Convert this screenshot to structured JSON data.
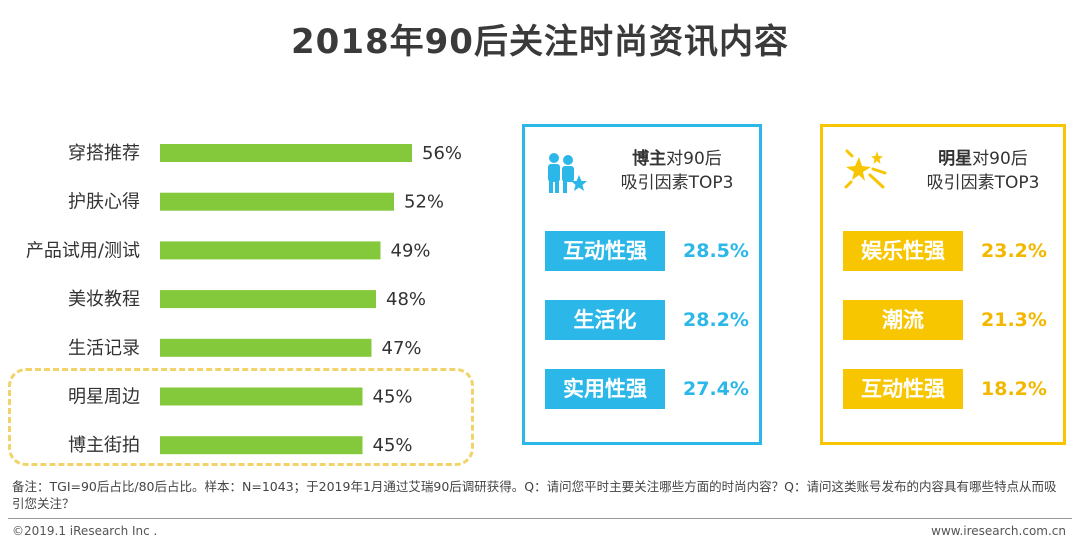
{
  "title": "2018年90后关注时尚资讯内容",
  "chart_data": {
    "type": "bar",
    "orientation": "horizontal",
    "categories": [
      "穿搭推荐",
      "护肤心得",
      "产品试用/测试",
      "美妆教程",
      "生活记录",
      "明星周边",
      "博主街拍"
    ],
    "values": [
      56,
      52,
      49,
      48,
      47,
      45,
      45
    ],
    "value_labels": [
      "56%",
      "52%",
      "49%",
      "48%",
      "47%",
      "45%",
      "45%"
    ],
    "unit": "%",
    "highlighted_categories": [
      "明星周边",
      "博主街拍"
    ],
    "colors": {
      "bar": "#84c83b",
      "highlight_border": "#f2d36a"
    }
  },
  "blogger_panel": {
    "title_bold": "博主",
    "title_rest": "对90后",
    "title_line2": "吸引因素TOP3",
    "icon": "people-star-icon",
    "color": "#2bb7e8",
    "factors": [
      {
        "label": "互动性强",
        "value": "28.5%"
      },
      {
        "label": "生活化",
        "value": "28.2%"
      },
      {
        "label": "实用性强",
        "value": "27.4%"
      }
    ]
  },
  "star_panel": {
    "title_bold": "明星",
    "title_rest": "对90后",
    "title_line2": "吸引因素TOP3",
    "icon": "sparkle-star-icon",
    "color": "#f7c600",
    "factors": [
      {
        "label": "娱乐性强",
        "value": "23.2%"
      },
      {
        "label": "潮流",
        "value": "21.3%"
      },
      {
        "label": "互动性强",
        "value": "18.2%"
      }
    ]
  },
  "note": "备注：TGI=90后占比/80后占比。样本：N=1043；于2019年1月通过艾瑞90后调研获得。Q：请问您平时主要关注哪些方面的时尚内容？Q：请问这类账号发布的内容具有哪些特点从而吸引您关注？",
  "footer": {
    "copyright": "©2019.1 iResearch Inc .",
    "website": "www.iresearch.com.cn"
  }
}
